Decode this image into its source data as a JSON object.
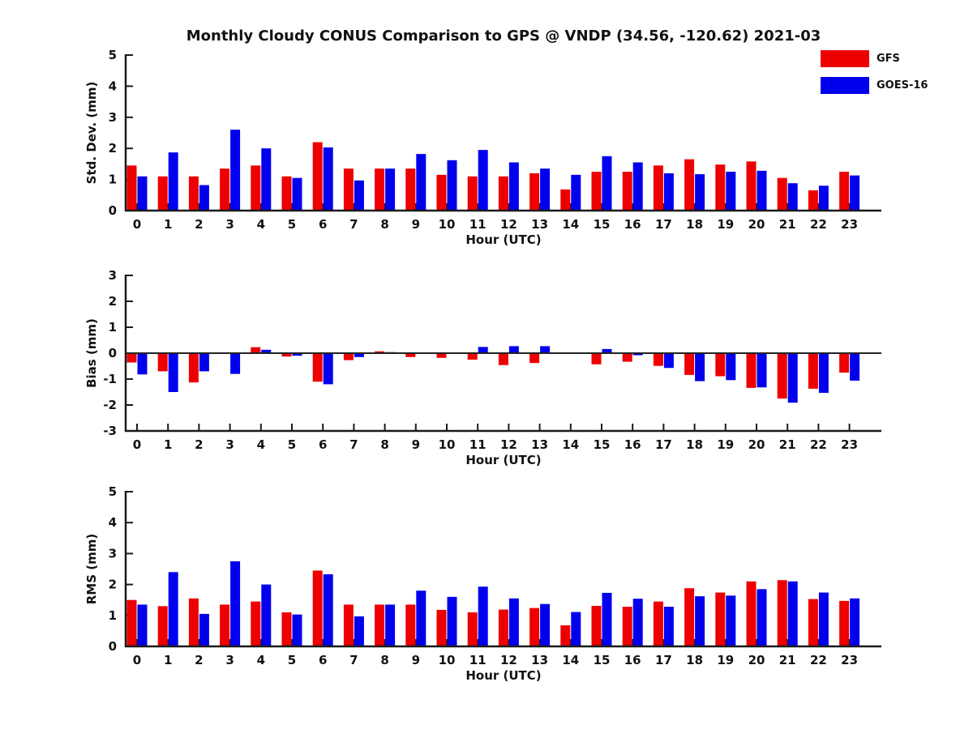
{
  "title": "Monthly Cloudy CONUS Comparison to GPS @ VNDP (34.56, -120.62) 2021-03",
  "xlabel": "Hour (UTC)",
  "legend": {
    "position": "top-right",
    "items": [
      {
        "label": "GFS",
        "color": "#ee0000"
      },
      {
        "label": "GOES-16",
        "color": "#0000ee"
      }
    ]
  },
  "colors": {
    "gfs": "#ee0000",
    "goes16": "#0000ee",
    "axis": "#1a1a1a",
    "text": "#111111",
    "background": "#ffffff"
  },
  "chart_data": [
    {
      "id": "subplot-stddev",
      "type": "bar",
      "ylabel": "Std. Dev. (mm)",
      "xlabel": "Hour (UTC)",
      "ylim": [
        0,
        5
      ],
      "yticks": [
        0,
        1,
        2,
        3,
        4,
        5
      ],
      "grid": false,
      "zero_line": false,
      "categories": [
        0,
        1,
        2,
        3,
        4,
        5,
        6,
        7,
        8,
        9,
        10,
        11,
        12,
        13,
        14,
        15,
        16,
        17,
        18,
        19,
        20,
        21,
        22,
        23
      ],
      "series": [
        {
          "name": "GFS",
          "color": "#ee0000",
          "values": [
            1.45,
            1.1,
            1.1,
            1.35,
            1.45,
            1.1,
            2.2,
            1.35,
            1.35,
            1.35,
            1.15,
            1.1,
            1.1,
            1.2,
            0.68,
            1.25,
            1.25,
            1.45,
            1.65,
            1.48,
            1.58,
            1.05,
            0.65,
            1.25
          ]
        },
        {
          "name": "GOES-16",
          "color": "#0000ee",
          "values": [
            1.1,
            1.87,
            0.82,
            2.6,
            2.0,
            1.05,
            2.03,
            0.97,
            1.35,
            1.82,
            1.62,
            1.95,
            1.55,
            1.35,
            1.15,
            1.75,
            1.55,
            1.2,
            1.17,
            1.25,
            1.28,
            0.88,
            0.8,
            1.13
          ]
        }
      ]
    },
    {
      "id": "subplot-bias",
      "type": "bar",
      "ylabel": "Bias (mm)",
      "xlabel": "Hour (UTC)",
      "ylim": [
        -3,
        3
      ],
      "yticks": [
        -3,
        -2,
        -1,
        0,
        1,
        2,
        3
      ],
      "grid": false,
      "zero_line": true,
      "categories": [
        0,
        1,
        2,
        3,
        4,
        5,
        6,
        7,
        8,
        9,
        10,
        11,
        12,
        13,
        14,
        15,
        16,
        17,
        18,
        19,
        20,
        21,
        22,
        23
      ],
      "series": [
        {
          "name": "GFS",
          "color": "#ee0000",
          "values": [
            -0.36,
            -0.7,
            -1.13,
            -0.03,
            0.23,
            -0.13,
            -1.1,
            -0.27,
            0.07,
            -0.15,
            -0.18,
            -0.25,
            -0.46,
            -0.38,
            0.0,
            -0.43,
            -0.33,
            -0.49,
            -0.84,
            -0.89,
            -1.34,
            -1.75,
            -1.37,
            -0.75
          ]
        },
        {
          "name": "GOES-16",
          "color": "#0000ee",
          "values": [
            -0.82,
            -1.5,
            -0.7,
            -0.8,
            0.13,
            -0.1,
            -1.2,
            -0.15,
            0.04,
            -0.03,
            -0.03,
            0.24,
            0.27,
            0.27,
            0.0,
            0.16,
            -0.08,
            -0.57,
            -1.08,
            -1.04,
            -1.32,
            -1.91,
            -1.53,
            -1.06
          ]
        }
      ]
    },
    {
      "id": "subplot-rms",
      "type": "bar",
      "ylabel": "RMS (mm)",
      "xlabel": "Hour (UTC)",
      "ylim": [
        0,
        5
      ],
      "yticks": [
        0,
        1,
        2,
        3,
        4,
        5
      ],
      "grid": false,
      "zero_line": false,
      "categories": [
        0,
        1,
        2,
        3,
        4,
        5,
        6,
        7,
        8,
        9,
        10,
        11,
        12,
        13,
        14,
        15,
        16,
        17,
        18,
        19,
        20,
        21,
        22,
        23
      ],
      "series": [
        {
          "name": "GFS",
          "color": "#ee0000",
          "values": [
            1.5,
            1.3,
            1.55,
            1.35,
            1.45,
            1.1,
            2.45,
            1.35,
            1.35,
            1.35,
            1.18,
            1.1,
            1.19,
            1.24,
            0.68,
            1.31,
            1.28,
            1.45,
            1.88,
            1.74,
            2.1,
            2.14,
            1.53,
            1.47
          ]
        },
        {
          "name": "GOES-16",
          "color": "#0000ee",
          "values": [
            1.35,
            2.4,
            1.05,
            2.75,
            2.0,
            1.03,
            2.33,
            0.97,
            1.35,
            1.8,
            1.6,
            1.93,
            1.55,
            1.37,
            1.11,
            1.73,
            1.54,
            1.28,
            1.62,
            1.64,
            1.85,
            2.1,
            1.74,
            1.55
          ]
        }
      ]
    }
  ]
}
